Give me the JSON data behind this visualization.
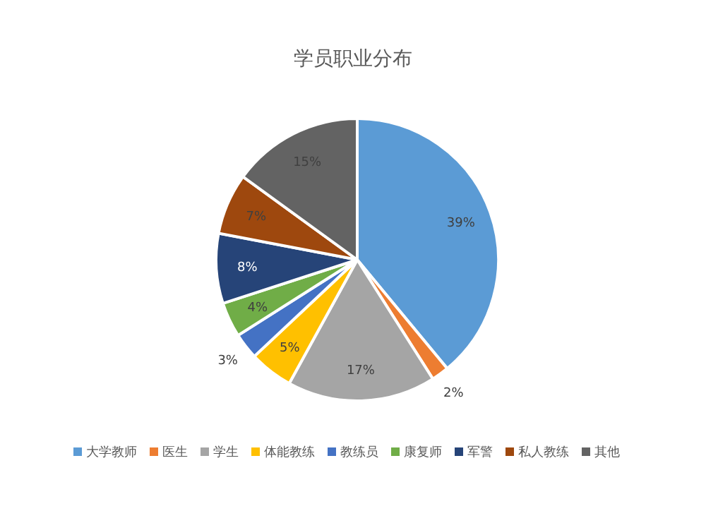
{
  "chart_data": {
    "type": "pie",
    "title": "学员职业分布",
    "categories": [
      "大学教师",
      "医生",
      "学生",
      "体能教练",
      "教练员",
      "康复师",
      "军警",
      "私人教练",
      "其他"
    ],
    "values": [
      39,
      2,
      17,
      5,
      3,
      4,
      8,
      7,
      15
    ],
    "value_labels": [
      "39%",
      "2%",
      "17%",
      "5%",
      "3%",
      "4%",
      "8%",
      "7%",
      "15%"
    ],
    "colors": [
      "#5b9bd5",
      "#ed7d31",
      "#a5a5a5",
      "#ffc000",
      "#4472c4",
      "#70ad47",
      "#264478",
      "#9e480e",
      "#636363"
    ],
    "legend": "bottom"
  }
}
